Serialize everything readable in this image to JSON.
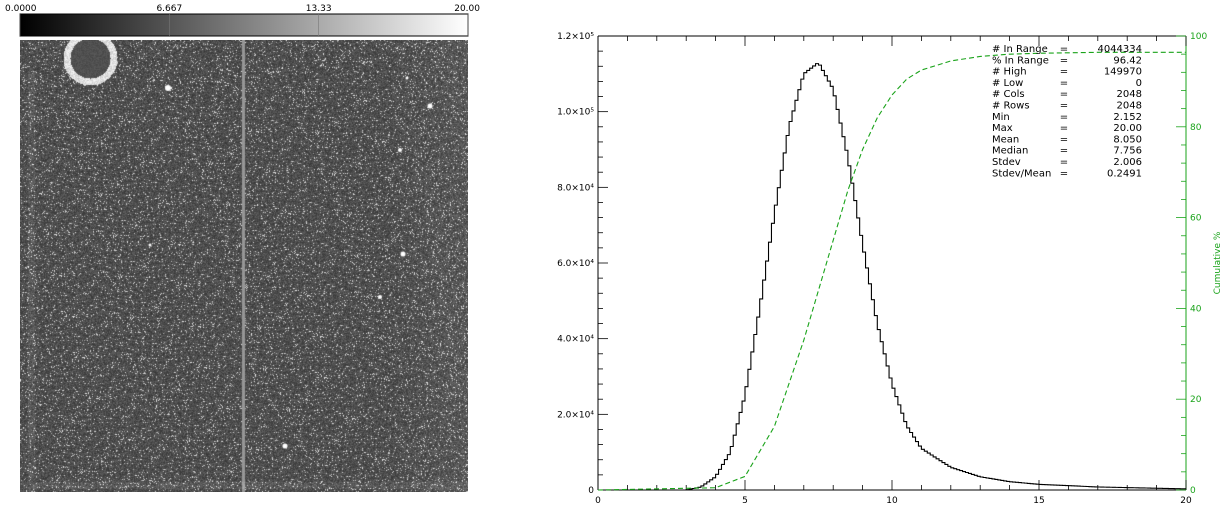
{
  "colorbar": {
    "ticks": [
      "0.0000",
      "6.667",
      "13.33",
      "20.00"
    ]
  },
  "image_panel": {
    "description_icon": "grayscale-detector-image"
  },
  "chart_data": {
    "type": "line",
    "xlim": [
      0,
      20
    ],
    "ylim": [
      0,
      120000
    ],
    "y2lim": [
      0,
      100
    ],
    "x_ticks": [
      "0",
      "5",
      "10",
      "15",
      "20"
    ],
    "y_ticks": [
      {
        "value": 0,
        "label": "0"
      },
      {
        "value": 20000,
        "label": "2.0×10⁴"
      },
      {
        "value": 40000,
        "label": "4.0×10⁴"
      },
      {
        "value": 60000,
        "label": "6.0×10⁴"
      },
      {
        "value": 80000,
        "label": "8.0×10⁴"
      },
      {
        "value": 100000,
        "label": "1.0×10⁵"
      },
      {
        "value": 120000,
        "label": "1.2×10⁵"
      }
    ],
    "y2_ticks": [
      "0",
      "20",
      "40",
      "60",
      "80",
      "100"
    ],
    "y2label": "Cumulative %",
    "histogram": {
      "peak_x": 7.5,
      "peak_y": 113000,
      "bin_width": 0.1,
      "x": [
        3.0,
        3.5,
        4.0,
        4.5,
        5.0,
        5.5,
        6.0,
        6.5,
        7.0,
        7.5,
        8.0,
        8.5,
        9.0,
        9.5,
        10.0,
        10.5,
        11.0,
        12.0,
        13.0,
        14.0,
        15.0,
        17.0,
        20.0
      ],
      "y": [
        0,
        800,
        3500,
        10000,
        25000,
        48000,
        73000,
        96000,
        110000,
        113000,
        106000,
        88000,
        65000,
        44000,
        28000,
        17000,
        11000,
        6000,
        3500,
        2200,
        1500,
        800,
        300
      ]
    },
    "cumulative": {
      "x": [
        0,
        4.0,
        5.0,
        6.0,
        7.0,
        7.5,
        8.0,
        8.5,
        9.0,
        9.5,
        10.0,
        10.5,
        11.0,
        12.0,
        13.0,
        14.0,
        15.0,
        17.0,
        19.0,
        20.0
      ],
      "y": [
        0,
        0.5,
        3,
        14,
        33,
        44,
        55,
        66,
        75,
        82,
        87,
        90.5,
        92.5,
        94.5,
        95.5,
        96,
        96.2,
        96.4,
        96.4,
        96.42
      ]
    },
    "colors": {
      "histogram": "#000000",
      "cumulative": "#1aa31a"
    },
    "stats": [
      {
        "label": "# In Range",
        "eq": "=",
        "value": "4044334"
      },
      {
        "label": "% In Range",
        "eq": "=",
        "value": "96.42"
      },
      {
        "label": "# High",
        "eq": "=",
        "value": "149970"
      },
      {
        "label": "# Low",
        "eq": "=",
        "value": "0"
      },
      {
        "label": "# Cols",
        "eq": "=",
        "value": "2048"
      },
      {
        "label": "# Rows",
        "eq": "=",
        "value": "2048"
      },
      {
        "label": "Min",
        "eq": "=",
        "value": "2.152"
      },
      {
        "label": "Max",
        "eq": "=",
        "value": "20.00"
      },
      {
        "label": "Mean",
        "eq": "=",
        "value": "8.050"
      },
      {
        "label": "Median",
        "eq": "=",
        "value": "7.756"
      },
      {
        "label": "Stdev",
        "eq": "=",
        "value": "2.006"
      },
      {
        "label": "Stdev/Mean",
        "eq": "=",
        "value": "0.2491"
      }
    ]
  }
}
